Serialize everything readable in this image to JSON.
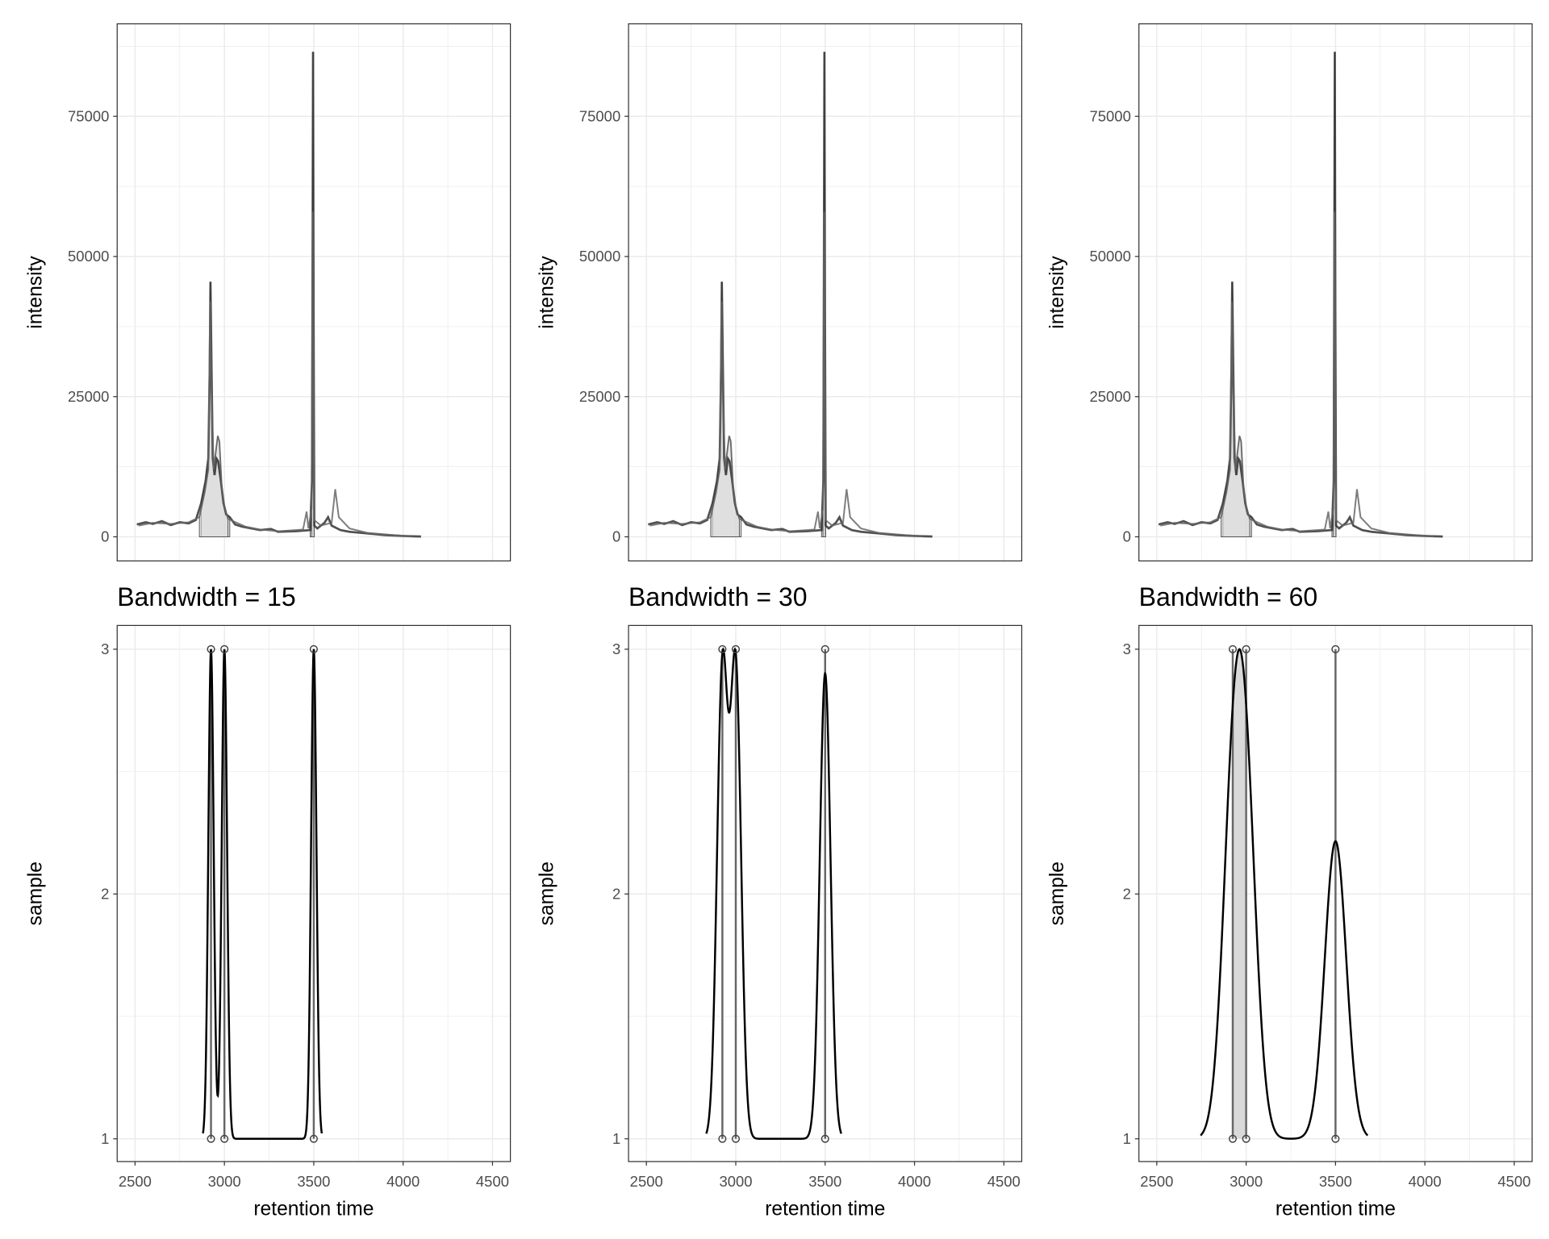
{
  "chart_data": [
    {
      "type": "line",
      "panel": "top",
      "xlabel": "",
      "ylabel": "intensity",
      "xlim": [
        2400,
        4600
      ],
      "ylim": [
        -4300,
        91500
      ],
      "x_ticks": [
        2500,
        3000,
        3500,
        4000,
        4500
      ],
      "y_ticks": [
        0,
        25000,
        50000,
        75000
      ],
      "y_tick_labels": [
        "0",
        "25000",
        "50000",
        "75000"
      ],
      "grid": true,
      "series": [
        {
          "values": [
            [
              2510,
              2200
            ],
            [
              2560,
              2600
            ],
            [
              2600,
              2300
            ],
            [
              2650,
              2800
            ],
            [
              2700,
              2100
            ],
            [
              2750,
              2600
            ],
            [
              2800,
              2400
            ],
            [
              2840,
              3000
            ],
            [
              2870,
              6000
            ],
            [
              2895,
              10000
            ],
            [
              2910,
              14000
            ],
            [
              2918,
              30000
            ],
            [
              2922,
              45500
            ],
            [
              2928,
              30000
            ],
            [
              2935,
              14000
            ],
            [
              2945,
              11000
            ],
            [
              2955,
              14000
            ],
            [
              2965,
              13500
            ],
            [
              2980,
              10000
            ],
            [
              2995,
              6000
            ],
            [
              3010,
              4000
            ],
            [
              3030,
              3500
            ],
            [
              3060,
              2200
            ],
            [
              3100,
              1800
            ],
            [
              3150,
              1500
            ],
            [
              3200,
              1200
            ],
            [
              3260,
              1400
            ],
            [
              3300,
              900
            ],
            [
              3400,
              1000
            ],
            [
              3480,
              1200
            ],
            [
              3490,
              10000
            ],
            [
              3494,
              60000
            ],
            [
              3496,
              86500
            ],
            [
              3499,
              40000
            ],
            [
              3503,
              2000
            ],
            [
              3520,
              1500
            ],
            [
              3560,
              2500
            ],
            [
              3580,
              3500
            ],
            [
              3600,
              2000
            ],
            [
              3650,
              1200
            ],
            [
              3700,
              900
            ],
            [
              3800,
              600
            ],
            [
              3900,
              300
            ],
            [
              4000,
              150
            ],
            [
              4100,
              50
            ]
          ]
        },
        {
          "values": [
            [
              2520,
              2000
            ],
            [
              2600,
              2500
            ],
            [
              2700,
              2300
            ],
            [
              2800,
              2600
            ],
            [
              2860,
              3500
            ],
            [
              2890,
              8000
            ],
            [
              2910,
              12000
            ],
            [
              2920,
              42000
            ],
            [
              2926,
              28000
            ],
            [
              2940,
              12000
            ],
            [
              2955,
              16000
            ],
            [
              2963,
              18000
            ],
            [
              2972,
              17000
            ],
            [
              2985,
              9000
            ],
            [
              3000,
              5500
            ],
            [
              3020,
              3200
            ],
            [
              3070,
              2500
            ],
            [
              3120,
              1800
            ],
            [
              3200,
              1300
            ],
            [
              3300,
              1000
            ],
            [
              3440,
              1300
            ],
            [
              3460,
              4500
            ],
            [
              3470,
              1500
            ],
            [
              3488,
              5000
            ],
            [
              3494,
              58000
            ],
            [
              3497,
              40000
            ],
            [
              3502,
              3000
            ],
            [
              3540,
              2000
            ],
            [
              3600,
              2500
            ],
            [
              3620,
              8500
            ],
            [
              3640,
              3500
            ],
            [
              3700,
              1500
            ],
            [
              3800,
              700
            ],
            [
              3950,
              300
            ],
            [
              4050,
              100
            ]
          ]
        }
      ],
      "peak_regions": [
        [
          2850,
          3030
        ],
        [
          3475,
          3510
        ]
      ]
    }
  ],
  "density_panels": [
    {
      "title": "Bandwidth = 15",
      "bandwidth": 15
    },
    {
      "title": "Bandwidth = 30",
      "bandwidth": 30
    },
    {
      "title": "Bandwidth = 60",
      "bandwidth": 60
    }
  ],
  "density_chart": {
    "type": "line",
    "xlabel": "retention time",
    "ylabel": "sample",
    "xlim": [
      2400,
      4600
    ],
    "ylim": [
      0.907,
      3.097
    ],
    "x_ticks": [
      2500,
      3000,
      3500,
      4000,
      4500
    ],
    "y_ticks": [
      1,
      2,
      3
    ],
    "peak_rts": [
      2925,
      3000,
      3500
    ],
    "samples": [
      1,
      3
    ],
    "grid": true
  },
  "colors": {
    "curve": "#000000",
    "trace": "#333333",
    "grid": "#ebebeb",
    "fill": "#d9d9d9"
  }
}
